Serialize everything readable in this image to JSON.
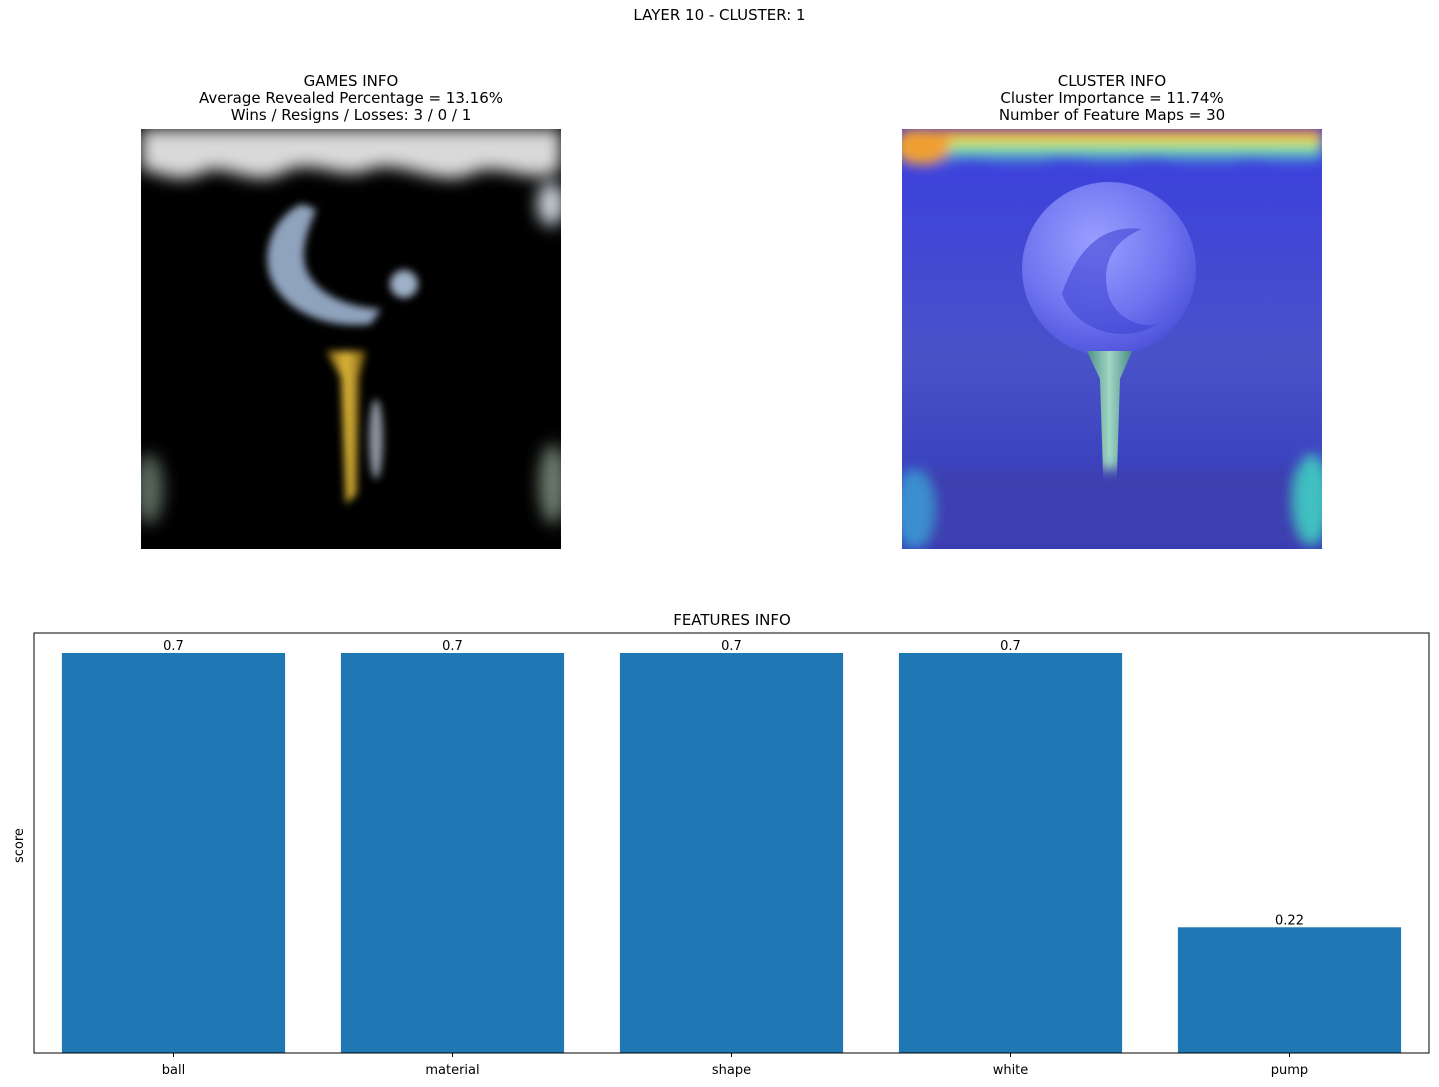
{
  "suptitle": "LAYER 10 - CLUSTER: 1",
  "games_info": {
    "title": "GAMES INFO",
    "line1": "Average Revealed Percentage = 13.16%",
    "line2": "Wins / Resigns / Losses: 3 / 0 / 1"
  },
  "cluster_info": {
    "title": "CLUSTER INFO",
    "line1": "Cluster Importance = 11.74%",
    "line2": "Number of Feature Maps = 30"
  },
  "colors": {
    "bar": "#1f77b4",
    "tee_gold": "#c9a02a",
    "heat_blue": "#3a3ee0"
  },
  "chart_data": {
    "type": "bar",
    "title": "FEATURES INFO",
    "xlabel": "",
    "ylabel": "score",
    "categories": [
      "ball",
      "material",
      "shape",
      "white",
      "pump"
    ],
    "values": [
      0.7,
      0.7,
      0.7,
      0.7,
      0.22
    ],
    "value_labels": [
      "0.7",
      "0.7",
      "0.7",
      "0.7",
      "0.22"
    ],
    "ylim": [
      0,
      0.735
    ],
    "yticks_shown": false,
    "grid": false
  }
}
